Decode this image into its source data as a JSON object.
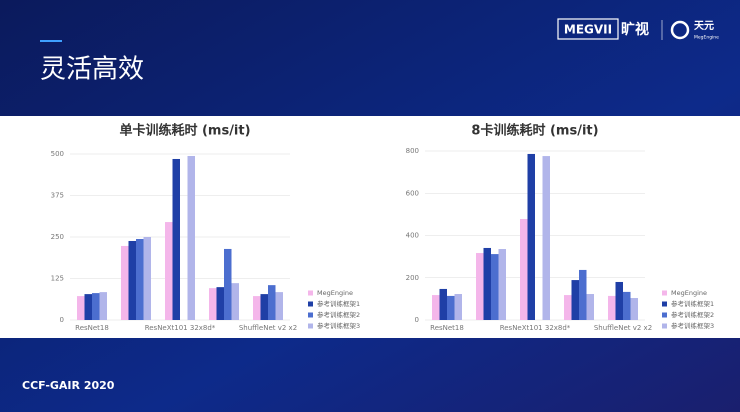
{
  "slide": {
    "title": "灵活高效",
    "logo": [
      "MEGVII",
      "旷视",
      "天元",
      "MegEngine"
    ],
    "footer": "CCF-GAIR 2020"
  },
  "chart_data": [
    {
      "type": "bar",
      "title": "单卡训练耗时 (ms/it)",
      "categories": [
        "ResNet18",
        null,
        "ResNeXt101 32x8d*",
        null,
        "ShuffleNet v2 x2"
      ],
      "series": [
        {
          "name": "MegEngine",
          "color": "#f4b6ea",
          "values": [
            72,
            223,
            295,
            96,
            72
          ]
        },
        {
          "name": "参考训练框架1",
          "color": "#1f3fa6",
          "values": [
            78,
            238,
            485,
            99,
            78
          ]
        },
        {
          "name": "参考训练框架2",
          "color": "#4c6ecf",
          "values": [
            81,
            244,
            null,
            214,
            105
          ]
        },
        {
          "name": "参考训练框架3",
          "color": "#b1b5ea",
          "values": [
            84,
            250,
            494,
            111,
            84
          ]
        }
      ],
      "ylim": [
        0,
        500
      ],
      "yticks": [
        0,
        125,
        250,
        375,
        500
      ],
      "grid": true
    },
    {
      "type": "bar",
      "title": "8卡训练耗时 (ms/it)",
      "categories": [
        "ResNet18",
        null,
        "ResNeXt101 32x8d*",
        null,
        "ShuffleNet v2 x2"
      ],
      "series": [
        {
          "name": "MegEngine",
          "color": "#f4b6ea",
          "values": [
            118,
            317,
            478,
            118,
            114
          ]
        },
        {
          "name": "参考训练框架1",
          "color": "#1f3fa6",
          "values": [
            147,
            341,
            786,
            189,
            180
          ]
        },
        {
          "name": "参考训练框架2",
          "color": "#4c6ecf",
          "values": [
            114,
            312,
            null,
            237,
            133
          ]
        },
        {
          "name": "参考训练框架3",
          "color": "#b1b5ea",
          "values": [
            123,
            336,
            776,
            123,
            104
          ]
        }
      ],
      "ylim": [
        0,
        800
      ],
      "yticks": [
        0,
        200,
        400,
        600,
        800
      ],
      "grid": true
    }
  ]
}
